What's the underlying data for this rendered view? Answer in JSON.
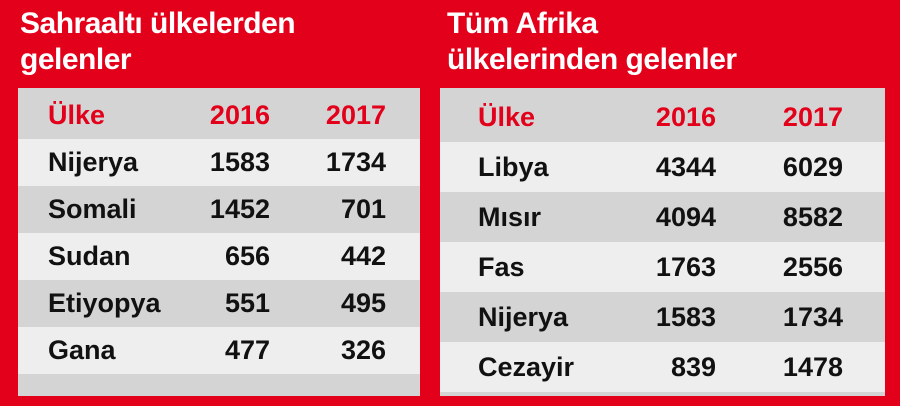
{
  "left": {
    "title_lines": [
      "Sahraaltı ülkelerden",
      "gelenler"
    ],
    "header": [
      "Ülke",
      "2016",
      "2017"
    ],
    "rows": [
      [
        "Nijerya",
        1583,
        1734
      ],
      [
        "Somali",
        1452,
        701
      ],
      [
        "Sudan",
        656,
        442
      ],
      [
        "Etiyopya",
        551,
        495
      ],
      [
        "Gana",
        477,
        326
      ]
    ]
  },
  "right": {
    "title_lines": [
      "Tüm Afrika",
      "ülkelerinden gelenler"
    ],
    "header": [
      "Ülke",
      "2016",
      "2017"
    ],
    "rows": [
      [
        "Libya",
        4344,
        6029
      ],
      [
        "Mısır",
        4094,
        8582
      ],
      [
        "Fas",
        1763,
        2556
      ],
      [
        "Nijerya",
        1583,
        1734
      ],
      [
        "Cezayir",
        839,
        1478
      ]
    ]
  }
}
